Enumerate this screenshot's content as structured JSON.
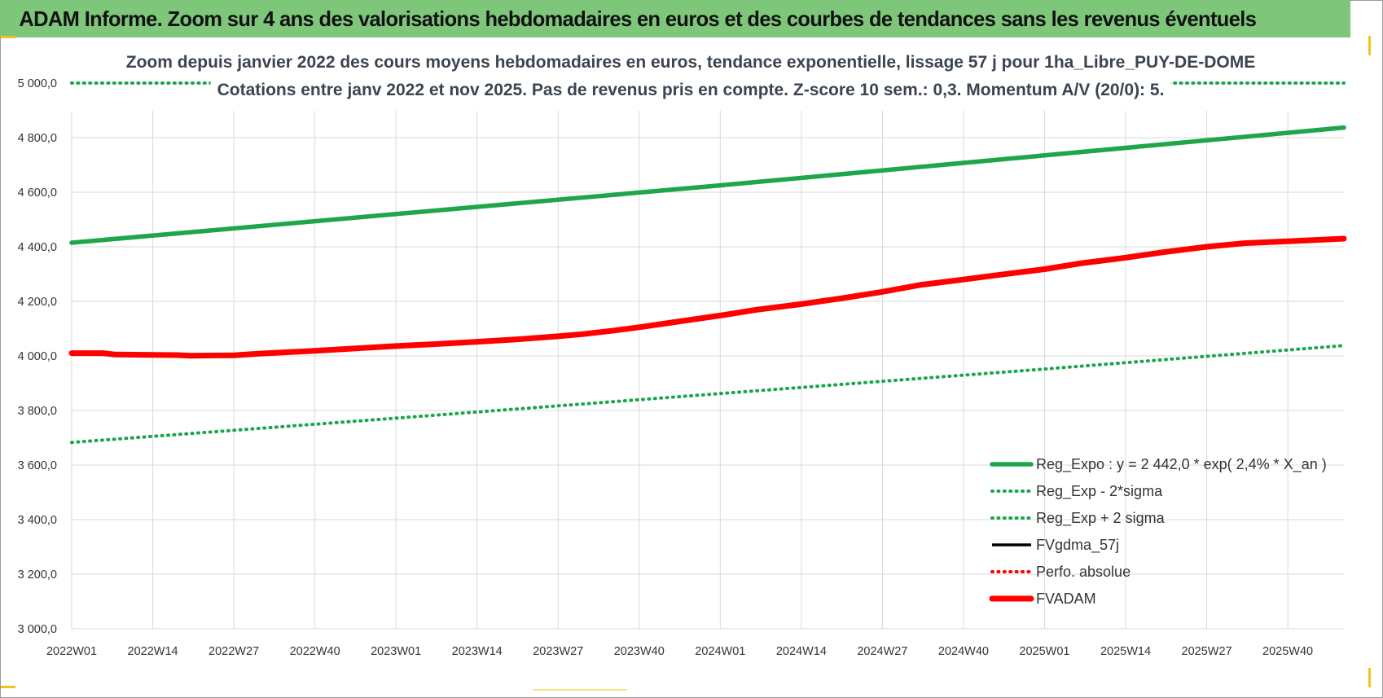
{
  "banner_title": "ADAM Informe. Zoom sur 4 ans des valorisations hebdomadaires en euros et des courbes de tendances sans les revenus éventuels",
  "colors": {
    "banner_bg": "#7dc67a",
    "reg_green": "#1fa64a",
    "dotted_green": "#1aa64a",
    "fvgdma": "#000000",
    "fvadam": "#ff0000",
    "grid": "#d9d9d9",
    "corner_accent": "#f0c419"
  },
  "chart_data": {
    "type": "line",
    "title_lines": [
      "Zoom depuis janvier 2022 des cours moyens hebdomadaires en euros, tendance exponentielle, lissage 57 j pour 1ha_Libre_PUY-DE-DOME",
      "Cotations entre janv 2022 et nov 2025. Pas de revenus pris en compte. Z-score 10 sem.: 0,3. Momentum A/V (20/0): 5."
    ],
    "x_tick_labels": [
      "2022W01",
      "2022W14",
      "2022W27",
      "2022W40",
      "2023W01",
      "2023W14",
      "2023W27",
      "2023W40",
      "2024W01",
      "2024W14",
      "2024W27",
      "2024W40",
      "2025W01",
      "2025W14",
      "2025W27",
      "2025W40"
    ],
    "x_range_weeks": [
      0,
      204
    ],
    "ylim": [
      3000,
      5000
    ],
    "y_tick_values": [
      3000,
      3200,
      3400,
      3600,
      3800,
      4000,
      4200,
      4400,
      4600,
      4800,
      5000
    ],
    "y_tick_labels": [
      "3 000,0",
      "3 200,0",
      "3 400,0",
      "3 600,0",
      "3 800,0",
      "4 000,0",
      "4 200,0",
      "4 400,0",
      "4 600,0",
      "4 800,0",
      "5 000,0"
    ],
    "grid": true,
    "series": [
      {
        "name": "Reg_Expo : y = 2 442,0 * exp( 2,4% *  X_an )",
        "style": "solid-thick",
        "color": "#1fa64a",
        "points": [
          [
            0,
            4415
          ],
          [
            52,
            4520
          ],
          [
            104,
            4625
          ],
          [
            156,
            4735
          ],
          [
            204,
            4837
          ]
        ]
      },
      {
        "name": "Reg_Exp - 2*sigma",
        "style": "dotted",
        "color": "#1aa64a",
        "points": [
          [
            0,
            3683
          ],
          [
            52,
            3772
          ],
          [
            104,
            3862
          ],
          [
            156,
            3952
          ],
          [
            204,
            4038
          ]
        ]
      },
      {
        "name": "Reg_Exp + 2 sigma",
        "style": "dotted",
        "color": "#1aa64a",
        "points": [
          [
            0,
            5000
          ],
          [
            204,
            5000
          ]
        ]
      },
      {
        "name": "FVgdma_57j",
        "style": "solid",
        "color": "#000000",
        "points": [
          [
            0,
            4010
          ],
          [
            5,
            4010
          ],
          [
            7,
            4005
          ],
          [
            13,
            4004
          ],
          [
            17,
            4003
          ],
          [
            19,
            4001
          ],
          [
            26,
            4002
          ],
          [
            30,
            4008
          ],
          [
            35,
            4014
          ],
          [
            40,
            4020
          ],
          [
            45,
            4027
          ],
          [
            52,
            4036
          ],
          [
            58,
            4043
          ],
          [
            65,
            4052
          ],
          [
            71,
            4060
          ],
          [
            78,
            4074
          ],
          [
            82,
            4080
          ],
          [
            87,
            4093
          ],
          [
            91,
            4105
          ],
          [
            97,
            4125
          ],
          [
            104,
            4148
          ],
          [
            110,
            4170
          ],
          [
            117,
            4190
          ],
          [
            124,
            4213
          ],
          [
            130,
            4235
          ],
          [
            136,
            4260
          ],
          [
            143,
            4280
          ],
          [
            149,
            4298
          ],
          [
            156,
            4318
          ],
          [
            162,
            4340
          ],
          [
            169,
            4360
          ],
          [
            175,
            4380
          ],
          [
            182,
            4400
          ],
          [
            188,
            4413
          ],
          [
            195,
            4420
          ],
          [
            204,
            4430
          ]
        ]
      },
      {
        "name": "Perfo. absolue",
        "style": "dotted",
        "color": "#ff0000",
        "points": [
          [
            0,
            4010
          ],
          [
            5,
            4010
          ],
          [
            7,
            4005
          ],
          [
            13,
            4004
          ],
          [
            17,
            4003
          ],
          [
            19,
            4001
          ],
          [
            26,
            4002
          ],
          [
            30,
            4008
          ],
          [
            35,
            4014
          ],
          [
            40,
            4020
          ],
          [
            45,
            4027
          ],
          [
            52,
            4036
          ],
          [
            58,
            4043
          ],
          [
            65,
            4052
          ],
          [
            71,
            4060
          ],
          [
            78,
            4072
          ],
          [
            82,
            4080
          ],
          [
            87,
            4093
          ],
          [
            91,
            4105
          ],
          [
            97,
            4125
          ],
          [
            104,
            4148
          ],
          [
            110,
            4170
          ],
          [
            117,
            4190
          ],
          [
            124,
            4213
          ],
          [
            130,
            4235
          ],
          [
            136,
            4260
          ],
          [
            143,
            4280
          ],
          [
            149,
            4298
          ],
          [
            156,
            4318
          ],
          [
            162,
            4340
          ],
          [
            169,
            4360
          ],
          [
            175,
            4380
          ],
          [
            182,
            4400
          ],
          [
            188,
            4413
          ],
          [
            195,
            4420
          ],
          [
            204,
            4430
          ]
        ]
      },
      {
        "name": "FVADAM",
        "style": "solid-thick",
        "color": "#ff0000",
        "points": [
          [
            0,
            4010
          ],
          [
            5,
            4010
          ],
          [
            7,
            4005
          ],
          [
            13,
            4004
          ],
          [
            17,
            4003
          ],
          [
            19,
            4001
          ],
          [
            26,
            4002
          ],
          [
            30,
            4008
          ],
          [
            35,
            4014
          ],
          [
            40,
            4020
          ],
          [
            45,
            4027
          ],
          [
            52,
            4036
          ],
          [
            58,
            4043
          ],
          [
            65,
            4052
          ],
          [
            71,
            4060
          ],
          [
            78,
            4072
          ],
          [
            82,
            4080
          ],
          [
            87,
            4093
          ],
          [
            91,
            4105
          ],
          [
            97,
            4125
          ],
          [
            104,
            4148
          ],
          [
            110,
            4170
          ],
          [
            117,
            4190
          ],
          [
            124,
            4213
          ],
          [
            130,
            4235
          ],
          [
            136,
            4260
          ],
          [
            143,
            4280
          ],
          [
            149,
            4298
          ],
          [
            156,
            4318
          ],
          [
            162,
            4340
          ],
          [
            169,
            4360
          ],
          [
            175,
            4380
          ],
          [
            182,
            4400
          ],
          [
            188,
            4413
          ],
          [
            195,
            4420
          ],
          [
            204,
            4430
          ]
        ]
      }
    ],
    "legend_position": "bottom-right"
  }
}
